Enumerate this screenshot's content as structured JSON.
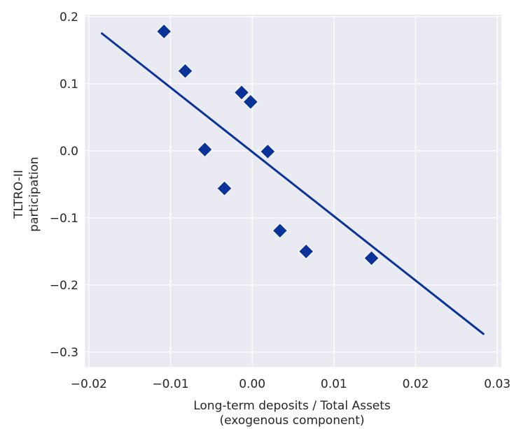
{
  "chart_data": {
    "type": "scatter",
    "title": "",
    "xlabel_lines": [
      "Long-term deposits / Total Assets",
      "(exogenous component)"
    ],
    "ylabel_lines": [
      "TLTRO-II",
      "participation"
    ],
    "xlim": [
      -0.0205,
      0.0305
    ],
    "ylim": [
      -0.322,
      0.203
    ],
    "xticks": [
      -0.02,
      -0.01,
      0.0,
      0.01,
      0.02,
      0.03
    ],
    "xtick_labels": [
      "−0.02",
      "−0.01",
      "0.00",
      "0.01",
      "0.02",
      "0.03"
    ],
    "yticks": [
      -0.3,
      -0.2,
      -0.1,
      0.0,
      0.1,
      0.2
    ],
    "ytick_labels": [
      "−0.3",
      "−0.2",
      "−0.1",
      "0.0",
      "0.1",
      "0.2"
    ],
    "grid": true,
    "background": "#eaeaf2",
    "series": [
      {
        "marker": "diamond",
        "color": "#0a3399",
        "points": [
          {
            "x": -0.0108,
            "y": 0.178
          },
          {
            "x": -0.0082,
            "y": 0.119
          },
          {
            "x": -0.0013,
            "y": 0.087
          },
          {
            "x": -0.0002,
            "y": 0.073
          },
          {
            "x": -0.0058,
            "y": 0.002
          },
          {
            "x": 0.0019,
            "y": -0.001
          },
          {
            "x": -0.0034,
            "y": -0.056
          },
          {
            "x": 0.0034,
            "y": -0.119
          },
          {
            "x": 0.0066,
            "y": -0.15
          },
          {
            "x": 0.0146,
            "y": -0.16
          }
        ]
      }
    ],
    "fit_line": {
      "color": "#0a3399",
      "x": [
        -0.0184,
        0.0283
      ],
      "y": [
        0.175,
        -0.273
      ]
    }
  }
}
